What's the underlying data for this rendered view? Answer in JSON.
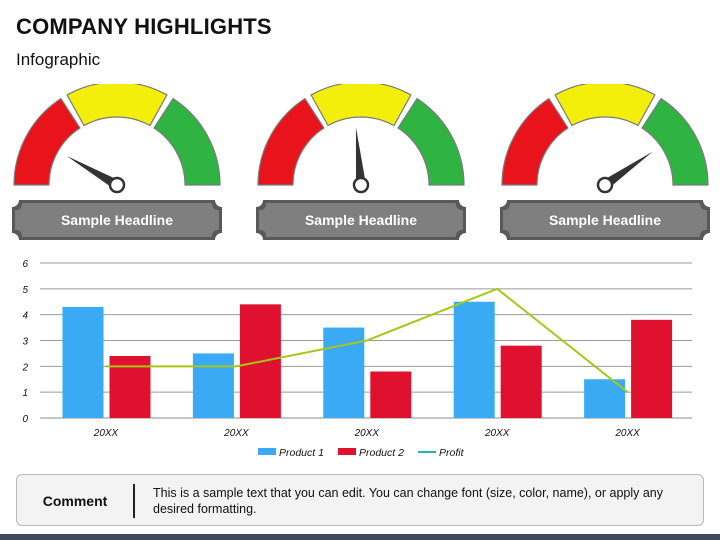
{
  "header": {
    "title": "COMPANY HIGHLIGHTS",
    "subtitle": "Infographic"
  },
  "gauges": [
    {
      "headline": "Sample Headline",
      "needle_angle_deg": 150
    },
    {
      "headline": "Sample Headline",
      "needle_angle_deg": 95
    },
    {
      "headline": "Sample Headline",
      "needle_angle_deg": 35
    }
  ],
  "gauge_colors": {
    "red": "#e8131b",
    "yellow": "#f4ef0a",
    "green": "#2fb444",
    "plate": "#7f7f7f",
    "needle": "#333333"
  },
  "chart_data": {
    "type": "bar",
    "categories": [
      "20XX",
      "20XX",
      "20XX",
      "20XX",
      "20XX"
    ],
    "series": [
      {
        "name": "Product 1",
        "type": "bar",
        "color": "#3aaaf5",
        "values": [
          4.3,
          2.5,
          3.5,
          4.5,
          1.5
        ]
      },
      {
        "name": "Product 2",
        "type": "bar",
        "color": "#e0102f",
        "values": [
          2.4,
          4.4,
          1.8,
          2.8,
          3.8
        ]
      },
      {
        "name": "Profit",
        "type": "line",
        "color": "#a6c716",
        "legend_color": "#1fb5b5",
        "values": [
          2,
          2,
          3,
          5,
          1
        ]
      }
    ],
    "y_ticks": [
      "0",
      "1",
      "2",
      "3",
      "4",
      "5",
      "6"
    ],
    "ylim": [
      0,
      6
    ],
    "grid": true,
    "legend_position": "bottom"
  },
  "comment": {
    "label": "Comment",
    "text": "This is a sample text that you can edit. You can change font (size, color, name), or apply any desired formatting."
  }
}
